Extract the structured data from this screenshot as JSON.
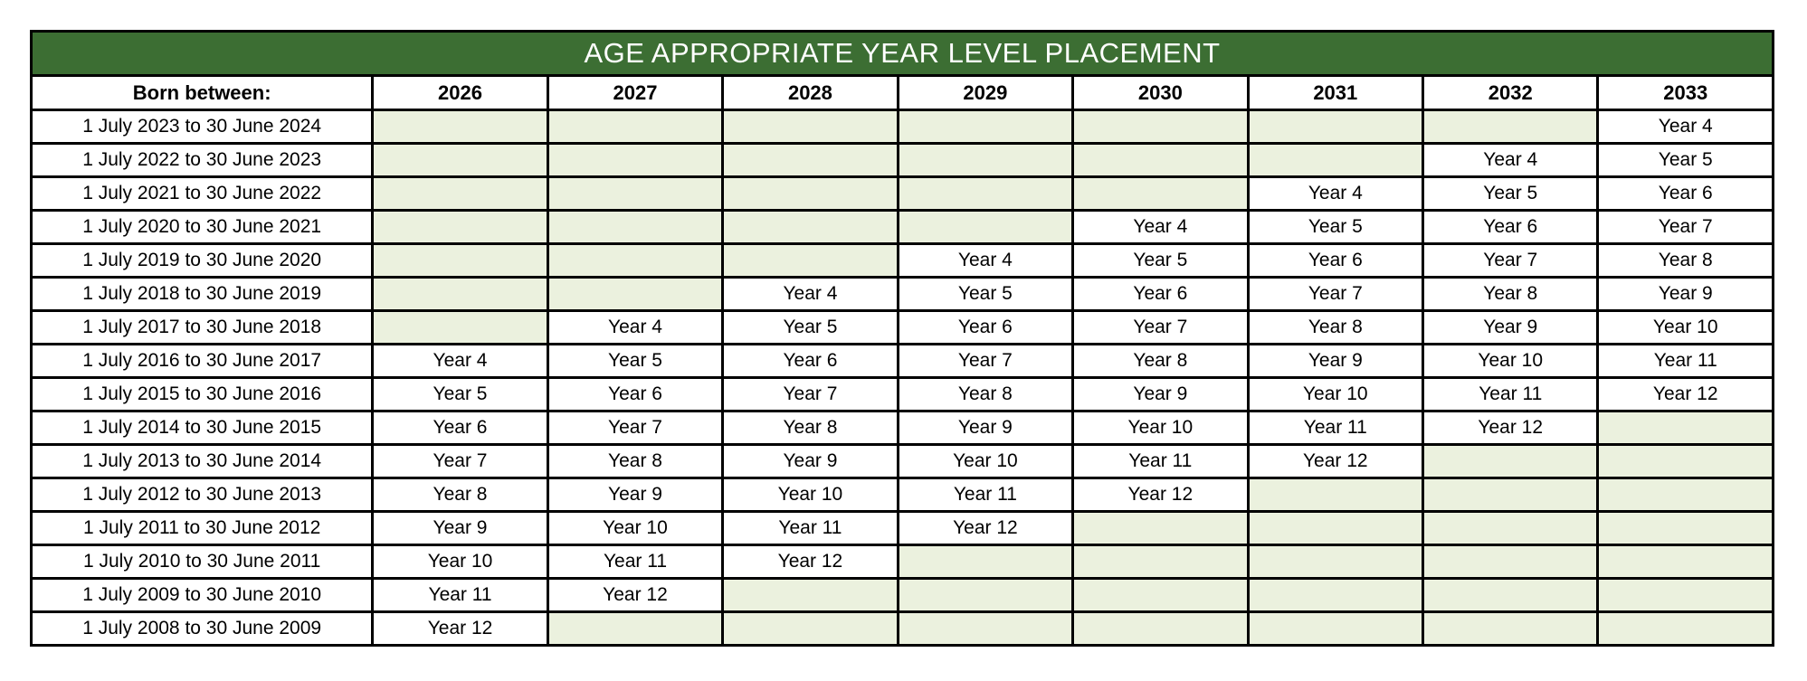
{
  "title": "AGE APPROPRIATE YEAR LEVEL PLACEMENT",
  "colors": {
    "title_bar_bg": "#3C6E33",
    "title_text": "#FFFFFF",
    "empty_cell_bg": "#EBF1DE",
    "filled_cell_bg": "#FFFFFF",
    "border": "#000000",
    "body_text": "#000000"
  },
  "table": {
    "corner_header": "Born between:",
    "year_headers": [
      "2026",
      "2027",
      "2028",
      "2029",
      "2030",
      "2031",
      "2032",
      "2033"
    ],
    "rows": [
      {
        "born": "1 July 2023 to 30 June 2024",
        "cells": [
          "",
          "",
          "",
          "",
          "",
          "",
          "",
          "Year 4"
        ]
      },
      {
        "born": "1 July 2022 to 30 June 2023",
        "cells": [
          "",
          "",
          "",
          "",
          "",
          "",
          "Year 4",
          "Year 5"
        ]
      },
      {
        "born": "1 July 2021 to 30 June 2022",
        "cells": [
          "",
          "",
          "",
          "",
          "",
          "Year 4",
          "Year 5",
          "Year 6"
        ]
      },
      {
        "born": "1 July 2020 to 30 June 2021",
        "cells": [
          "",
          "",
          "",
          "",
          "Year 4",
          "Year 5",
          "Year 6",
          "Year 7"
        ]
      },
      {
        "born": "1 July 2019 to 30 June 2020",
        "cells": [
          "",
          "",
          "",
          "Year 4",
          "Year 5",
          "Year 6",
          "Year 7",
          "Year 8"
        ]
      },
      {
        "born": "1 July 2018 to 30 June 2019",
        "cells": [
          "",
          "",
          "Year 4",
          "Year 5",
          "Year 6",
          "Year 7",
          "Year 8",
          "Year 9"
        ]
      },
      {
        "born": "1 July 2017 to 30 June 2018",
        "cells": [
          "",
          "Year 4",
          "Year 5",
          "Year 6",
          "Year 7",
          "Year 8",
          "Year 9",
          "Year 10"
        ]
      },
      {
        "born": "1 July 2016 to 30 June 2017",
        "cells": [
          "Year 4",
          "Year 5",
          "Year 6",
          "Year 7",
          "Year 8",
          "Year 9",
          "Year 10",
          "Year 11"
        ]
      },
      {
        "born": "1 July 2015 to 30 June 2016",
        "cells": [
          "Year 5",
          "Year 6",
          "Year 7",
          "Year 8",
          "Year 9",
          "Year 10",
          "Year 11",
          "Year 12"
        ]
      },
      {
        "born": "1 July 2014 to 30 June 2015",
        "cells": [
          "Year 6",
          "Year 7",
          "Year 8",
          "Year 9",
          "Year 10",
          "Year 11",
          "Year 12",
          ""
        ]
      },
      {
        "born": "1 July 2013 to 30 June 2014",
        "cells": [
          "Year 7",
          "Year 8",
          "Year 9",
          "Year 10",
          "Year 11",
          "Year 12",
          "",
          ""
        ]
      },
      {
        "born": "1 July 2012 to 30 June 2013",
        "cells": [
          "Year 8",
          "Year 9",
          "Year 10",
          "Year 11",
          "Year 12",
          "",
          "",
          ""
        ]
      },
      {
        "born": "1 July 2011 to 30 June 2012",
        "cells": [
          "Year 9",
          "Year 10",
          "Year 11",
          "Year 12",
          "",
          "",
          "",
          ""
        ]
      },
      {
        "born": "1 July 2010 to 30 June 2011",
        "cells": [
          "Year 10",
          "Year 11",
          "Year 12",
          "",
          "",
          "",
          "",
          ""
        ]
      },
      {
        "born": "1 July 2009 to 30 June 2010",
        "cells": [
          "Year 11",
          "Year 12",
          "",
          "",
          "",
          "",
          "",
          ""
        ]
      },
      {
        "born": "1 July 2008 to 30 June 2009",
        "cells": [
          "Year 12",
          "",
          "",
          "",
          "",
          "",
          "",
          ""
        ]
      }
    ]
  }
}
